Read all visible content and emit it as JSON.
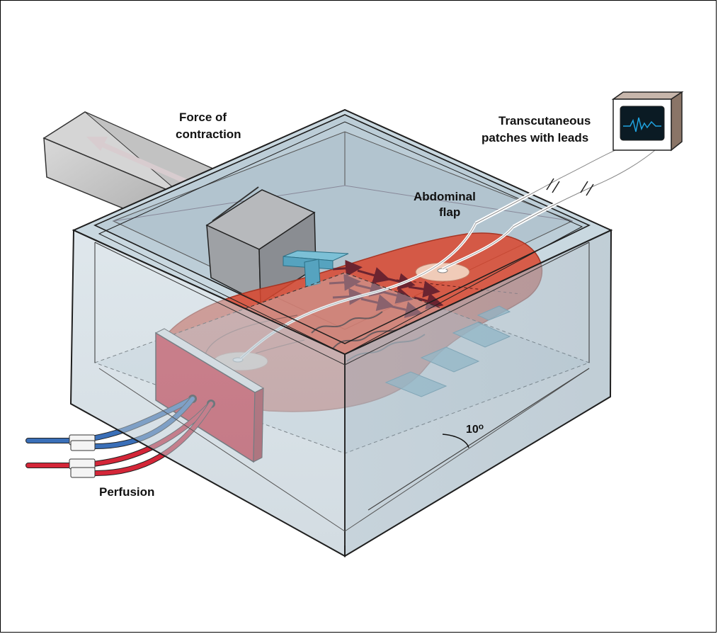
{
  "labels": {
    "force_line1": "Force of",
    "force_line2": "contraction",
    "patches_line1": "Transcutaneous",
    "patches_line2": "patches with leads",
    "flap_line1": "Abdominal",
    "flap_line2": "flap",
    "perfusion": "Perfusion",
    "angle": "10",
    "angle_unit": "o"
  },
  "colors": {
    "tank_glass": "#b9cdd8",
    "flap": "#d9472e",
    "perfusion_block": "#d8202f",
    "arterial_tube": "#d42638",
    "venous_tube": "#3a6fb8",
    "clamp": "#56a3bf",
    "monitor_trace": "#1fa3e0"
  },
  "icons": [
    "oscilloscope-monitor-icon",
    "double-arrow-icon"
  ]
}
